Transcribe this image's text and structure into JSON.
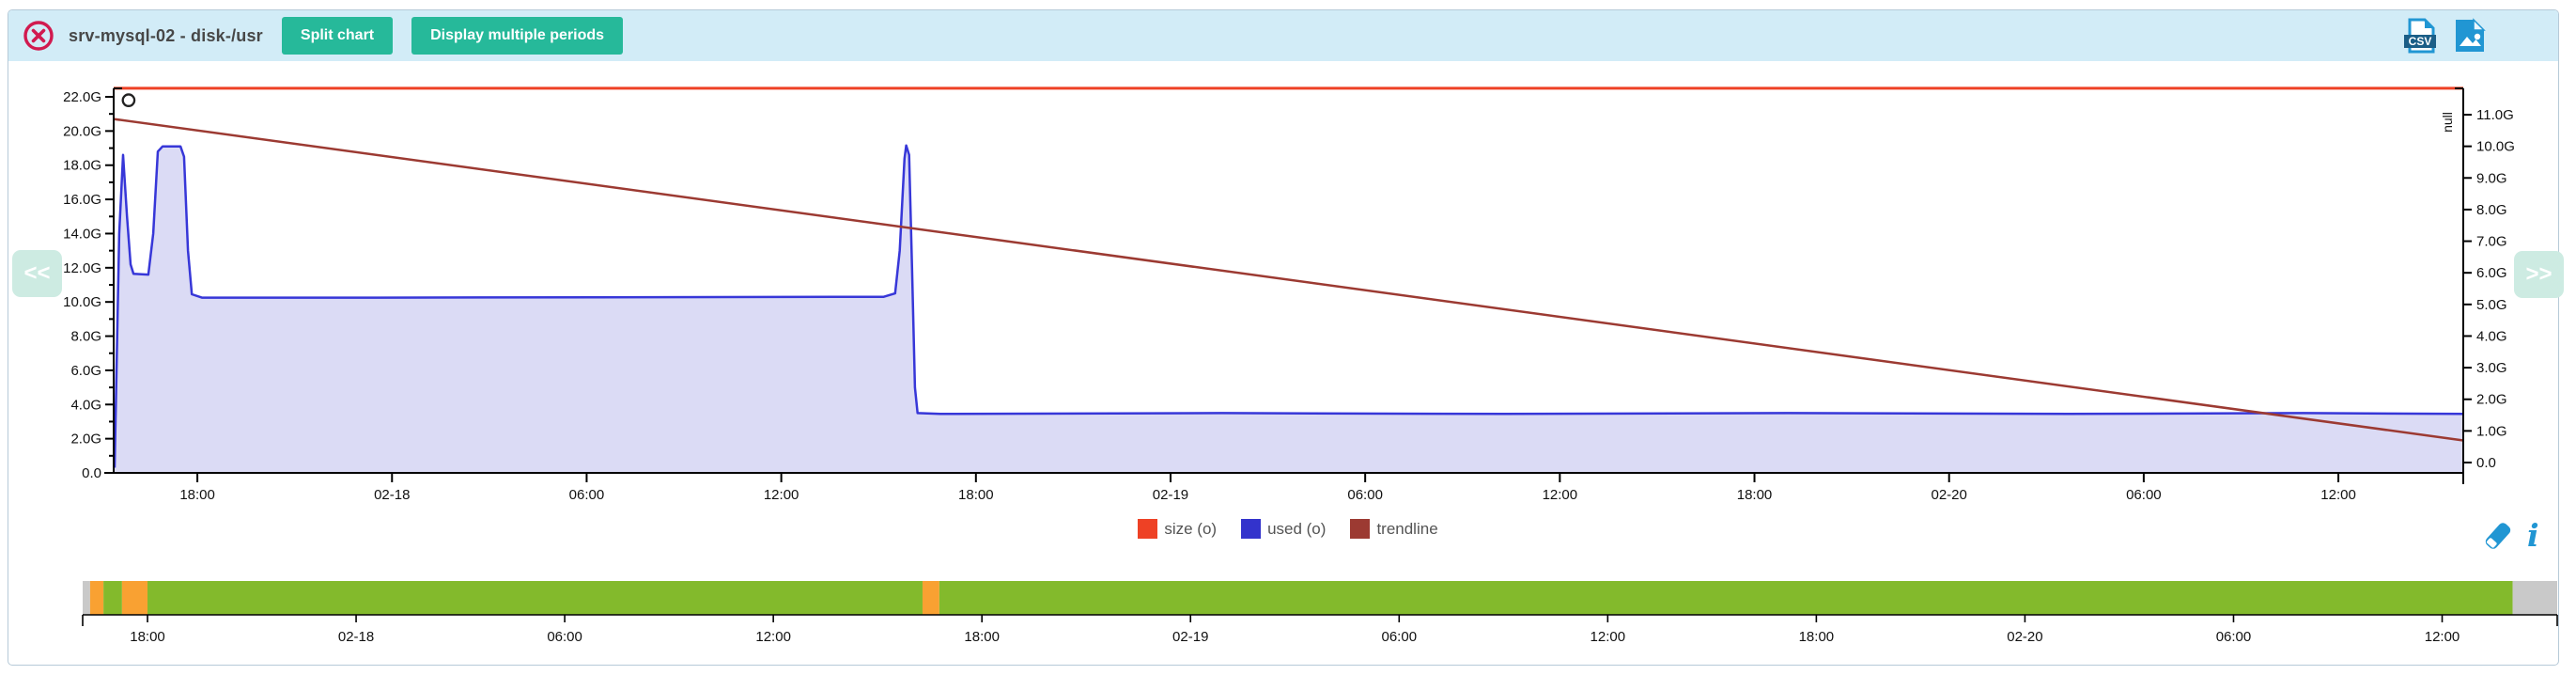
{
  "header": {
    "title": "srv-mysql-02 - disk-/usr",
    "split_chart_label": "Split chart",
    "multi_period_label": "Display multiple periods",
    "csv_badge": "CSV",
    "icons": {
      "close": "circled-x-icon",
      "csv": "csv-file-icon",
      "image": "image-file-icon"
    }
  },
  "nav": {
    "prev": "<<",
    "next": ">>"
  },
  "legend": {
    "items": [
      {
        "label": "size (o)",
        "color": "#ee4125"
      },
      {
        "label": "used (o)",
        "color": "#3333cc"
      },
      {
        "label": "trendline",
        "color": "#9c3a32"
      }
    ]
  },
  "tools": {
    "eraser": "eraser-icon",
    "info": "info-icon",
    "info_glyph": "i"
  },
  "colors": {
    "header_bg": "#d2ecf7",
    "accent_teal": "#26b99a",
    "close_red": "#d11a4f",
    "icon_blue": "#2196d3",
    "size_line": "#ee4125",
    "used_line": "#3737d8",
    "used_fill": "#dbdbf5",
    "trend_line": "#9c3a32",
    "ov_green": "#83ba2c",
    "ov_orange": "#f9a132",
    "ov_gray": "#c9c9c9",
    "axis": "#000000",
    "tick_text": "#111111"
  },
  "chart_data": {
    "type": "area",
    "title": "",
    "unit": "G",
    "x_axis": {
      "tick_labels": [
        "18:00",
        "02-18",
        "06:00",
        "12:00",
        "18:00",
        "02-19",
        "06:00",
        "12:00",
        "18:00",
        "02-20",
        "06:00",
        "12:00"
      ],
      "first_tick_hour": 2.58,
      "tick_interval_hours": 6,
      "span_hours": 72.43
    },
    "y_left": {
      "max": 22,
      "tick_labels": [
        "0.0",
        "2.0G",
        "4.0G",
        "6.0G",
        "8.0G",
        "10.0G",
        "12.0G",
        "14.0G",
        "16.0G",
        "18.0G",
        "20.0G",
        "22.0G"
      ]
    },
    "y_right": {
      "label": "null",
      "max": 11,
      "tick_labels": [
        "0.0",
        "1.0G",
        "2.0G",
        "3.0G",
        "4.0G",
        "5.0G",
        "6.0G",
        "7.0G",
        "8.0G",
        "9.0G",
        "10.0G",
        "11.0G"
      ]
    },
    "series": [
      {
        "name": "size (o)",
        "style": "line",
        "axis": "left",
        "color": "#ee4125",
        "width": 3,
        "points": [
          [
            0,
            22.5
          ],
          [
            72.43,
            22.5
          ]
        ],
        "marker": {
          "x": 0.46,
          "y": 21.8
        }
      },
      {
        "name": "used (o)",
        "style": "area",
        "axis": "left",
        "color": "#3737d8",
        "fill": "#dbdbf5",
        "width": 2.5,
        "points": [
          [
            0.03,
            0.3
          ],
          [
            0.17,
            14.0
          ],
          [
            0.29,
            18.6
          ],
          [
            0.41,
            15.0
          ],
          [
            0.52,
            12.2
          ],
          [
            0.61,
            11.65
          ],
          [
            1.07,
            11.6
          ],
          [
            1.22,
            14.0
          ],
          [
            1.36,
            18.8
          ],
          [
            1.51,
            19.1
          ],
          [
            2.06,
            19.1
          ],
          [
            2.17,
            18.5
          ],
          [
            2.29,
            13.0
          ],
          [
            2.41,
            10.45
          ],
          [
            2.72,
            10.25
          ],
          [
            8.09,
            10.25
          ],
          [
            16.78,
            10.28
          ],
          [
            23.74,
            10.3
          ],
          [
            24.09,
            10.5
          ],
          [
            24.23,
            13.0
          ],
          [
            24.38,
            18.4
          ],
          [
            24.43,
            19.15
          ],
          [
            24.52,
            18.6
          ],
          [
            24.61,
            12.0
          ],
          [
            24.7,
            5.0
          ],
          [
            24.78,
            3.5
          ],
          [
            25.48,
            3.45
          ],
          [
            34.17,
            3.5
          ],
          [
            42.87,
            3.45
          ],
          [
            51.57,
            3.5
          ],
          [
            60.26,
            3.45
          ],
          [
            67.51,
            3.5
          ],
          [
            72.43,
            3.45
          ]
        ]
      },
      {
        "name": "trendline",
        "style": "line",
        "axis": "left",
        "color": "#9c3a32",
        "width": 2.5,
        "points": [
          [
            0,
            20.7
          ],
          [
            72.43,
            1.9
          ]
        ]
      }
    ]
  },
  "overview": {
    "tick_labels": [
      "18:00",
      "02-18",
      "06:00",
      "12:00",
      "18:00",
      "02-19",
      "06:00",
      "12:00",
      "18:00",
      "02-20",
      "06:00",
      "12:00"
    ],
    "first_tick_pct": 2.62,
    "tick_interval_pct": 8.43,
    "segments": [
      {
        "color": "gray",
        "from": 0,
        "to": 0.3
      },
      {
        "color": "orange",
        "from": 0.3,
        "to": 0.84
      },
      {
        "color": "green",
        "from": 0.84,
        "to": 1.59
      },
      {
        "color": "orange",
        "from": 1.59,
        "to": 2.62
      },
      {
        "color": "green",
        "from": 2.62,
        "to": 33.94
      },
      {
        "color": "orange",
        "from": 33.94,
        "to": 34.62
      },
      {
        "color": "green",
        "from": 34.62,
        "to": 98.2
      },
      {
        "color": "gray",
        "from": 98.2,
        "to": 100
      }
    ]
  }
}
